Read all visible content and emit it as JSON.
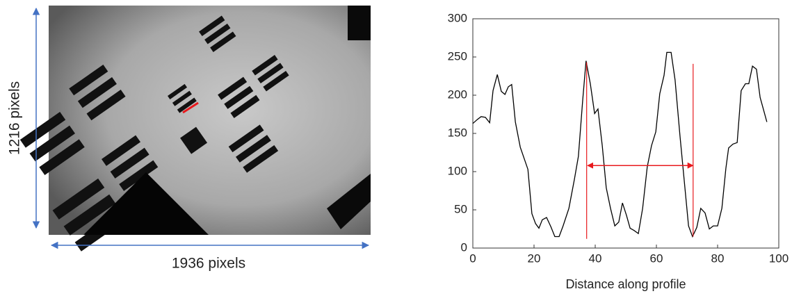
{
  "image": {
    "height_label": "1216 pixels",
    "width_label": "1936 pixels"
  },
  "chart_data": {
    "type": "line",
    "xlabel": "Distance along profile",
    "x": [
      0,
      1.4,
      2.7,
      4.1,
      5.5,
      6.6,
      8,
      9.3,
      10.5,
      11.6,
      12.7,
      13.9,
      15.5,
      18,
      19.3,
      20.5,
      21.6,
      22.7,
      24.1,
      25.5,
      26.8,
      28.2,
      29.5,
      31.4,
      33.2,
      34.5,
      35.9,
      37,
      38.4,
      39.8,
      40.9,
      42.3,
      43.6,
      45,
      46.4,
      47.7,
      48.9,
      50.2,
      51.4,
      52.7,
      54.1,
      55.5,
      57,
      58.4,
      59.8,
      61.1,
      62.5,
      63.4,
      64.8,
      66.1,
      67.7,
      69.1,
      70.5,
      71.8,
      73.2,
      74.5,
      75.9,
      77.3,
      78.6,
      80,
      81.4,
      82.7,
      83.6,
      85,
      86.4,
      87.7,
      89.1,
      90.2,
      91.4,
      92.7,
      93.9,
      94.8,
      96.1
    ],
    "series": [
      {
        "color": "#000000",
        "values": [
          163,
          168,
          172,
          171,
          164,
          206,
          227,
          205,
          201,
          211,
          214,
          165,
          132,
          103,
          45,
          32,
          26,
          37,
          40,
          28,
          15,
          15,
          29,
          52,
          90,
          120,
          193,
          245,
          215,
          176,
          182,
          134,
          79,
          52,
          29,
          34,
          59,
          43,
          26,
          23,
          19,
          52,
          106,
          134,
          152,
          202,
          226,
          256,
          256,
          220,
          147,
          88,
          29,
          15,
          27,
          52,
          46,
          25,
          29,
          29,
          52,
          104,
          131,
          136,
          138,
          206,
          215,
          215,
          238,
          234,
          197,
          184,
          165
        ]
      }
    ],
    "xlim": [
      0,
      100
    ],
    "xticks": [
      0,
      20,
      40,
      60,
      80,
      100
    ],
    "ylim": [
      0,
      300
    ],
    "yticks": [
      0,
      50,
      100,
      150,
      200,
      250,
      300
    ],
    "annotation_color": "#e8191d",
    "vlines": [
      {
        "x": 37.2,
        "y": [
          12,
          243
        ]
      },
      {
        "x": 72,
        "y": [
          15,
          241
        ]
      }
    ],
    "arrow": {
      "x": [
        37.5,
        72
      ],
      "y": 108
    }
  }
}
